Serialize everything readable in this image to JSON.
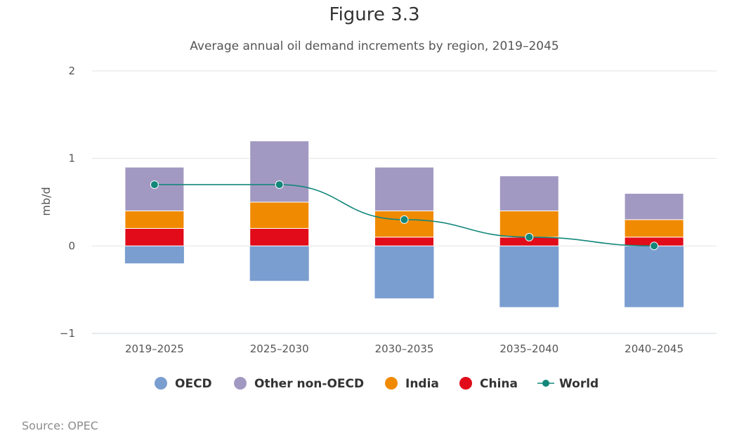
{
  "figure_label": "Figure 3.3",
  "source": "Source: OPEC",
  "colors": {
    "OECD": "#7b9ed0",
    "Other non-OECD": "#a299c2",
    "India": "#f08a00",
    "China": "#e10b1a",
    "World": "#12877a",
    "grid": "#e3e3e3",
    "axis_text": "#555555",
    "text": "#333333"
  },
  "chart_data": {
    "type": "bar",
    "stacked": true,
    "title": "Average annual oil demand increments by region, 2019–2045",
    "xlabel": "",
    "ylabel": "mb/d",
    "ylim": [
      -1,
      2
    ],
    "yticks": [
      2,
      1,
      0,
      -1
    ],
    "ytick_labels": [
      "2",
      "1",
      "0",
      "−1"
    ],
    "grid": true,
    "legend_position": "bottom-center",
    "categories": [
      "2019–2025",
      "2025–2030",
      "2030–2035",
      "2035–2040",
      "2040–2045"
    ],
    "series": [
      {
        "name": "OECD",
        "kind": "bar",
        "values": [
          -0.2,
          -0.4,
          -0.6,
          -0.7,
          -0.7
        ]
      },
      {
        "name": "Other non-OECD",
        "kind": "bar",
        "values": [
          0.5,
          0.7,
          0.5,
          0.4,
          0.3
        ]
      },
      {
        "name": "India",
        "kind": "bar",
        "values": [
          0.2,
          0.3,
          0.3,
          0.3,
          0.2
        ]
      },
      {
        "name": "China",
        "kind": "bar",
        "values": [
          0.2,
          0.2,
          0.1,
          0.1,
          0.1
        ]
      },
      {
        "name": "World",
        "kind": "line",
        "values": [
          0.7,
          0.7,
          0.3,
          0.1,
          0.0
        ]
      }
    ],
    "stack_order": [
      "China",
      "India",
      "Other non-OECD"
    ],
    "legend": [
      "OECD",
      "Other non-OECD",
      "India",
      "China",
      "World"
    ]
  }
}
